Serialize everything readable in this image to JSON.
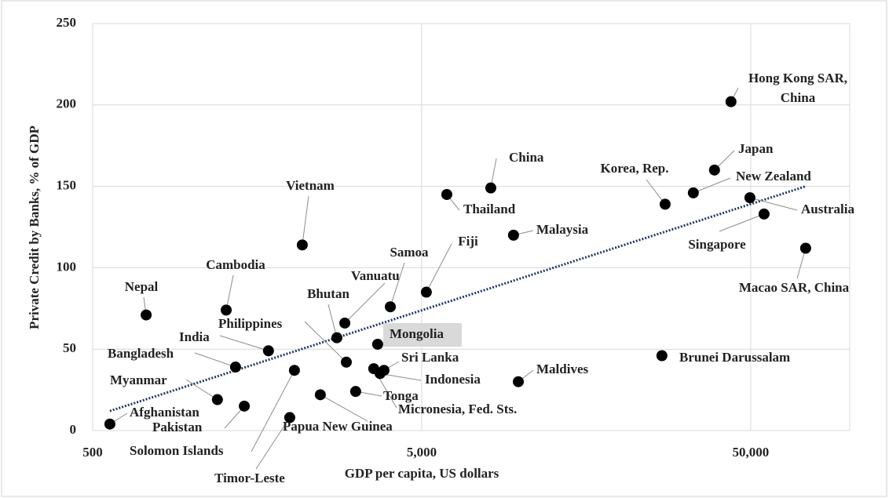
{
  "chart_data": {
    "type": "scatter",
    "x_label": "GDP per capita, US dollars",
    "y_label": "Private Credit by Banks, % of GDP",
    "x_log": true,
    "grid": true,
    "color": "#000000",
    "trend_color": "#1f3864",
    "xlim": [
      500,
      100000
    ],
    "xticks": [
      500,
      {
        "value": 5000,
        "label": "5,000"
      },
      {
        "value": 50000,
        "label": "50,000"
      }
    ],
    "ylim": [
      0,
      250
    ],
    "yticks": [
      0,
      50,
      100,
      150,
      200,
      250
    ],
    "point_labels": [
      "Afghanistan",
      "Nepal",
      "Cambodia",
      "Vietnam",
      "India",
      "Bangladesh",
      "Myanmar",
      "Pakistan",
      "Solomon Islands",
      "Timor-Leste",
      "Papua New Guinea",
      "Bhutan",
      "Vanuatu",
      "Philippines",
      "Tonga",
      "Mongolia",
      "Samoa",
      "Sri Lanka",
      "Micronesia, Fed. Sts.",
      "Indonesia",
      "Fiji",
      "Thailand",
      "China",
      "Malaysia",
      "Maldives",
      "Brunei Darussalam",
      "Korea, Rep.",
      "New Zealand",
      "Japan",
      "Hong Kong SAR, China",
      "Australia",
      "Singapore",
      "Macao SAR, China"
    ],
    "x": [
      564,
      727,
      1273,
      2168,
      1711,
      1359,
      1197,
      1445,
      2052,
      1986,
      2460,
      2762,
      2920,
      2951,
      3150,
      3674,
      4015,
      3841,
      3575,
      3737,
      5166,
      5961,
      8110,
      9508,
      9834,
      26864,
      27475,
      33470,
      38809,
      43560,
      49730,
      54900,
      73450
    ],
    "values": [
      4,
      71,
      74,
      114,
      49,
      39,
      19,
      15,
      37,
      8,
      22,
      57,
      66,
      42,
      24,
      53,
      76,
      37,
      38,
      35,
      85,
      145,
      149,
      120,
      30,
      46,
      139,
      146,
      160,
      202,
      143,
      133,
      112
    ],
    "trendline": {
      "x": [
        564,
        73450
      ],
      "values": [
        12,
        150
      ]
    }
  }
}
